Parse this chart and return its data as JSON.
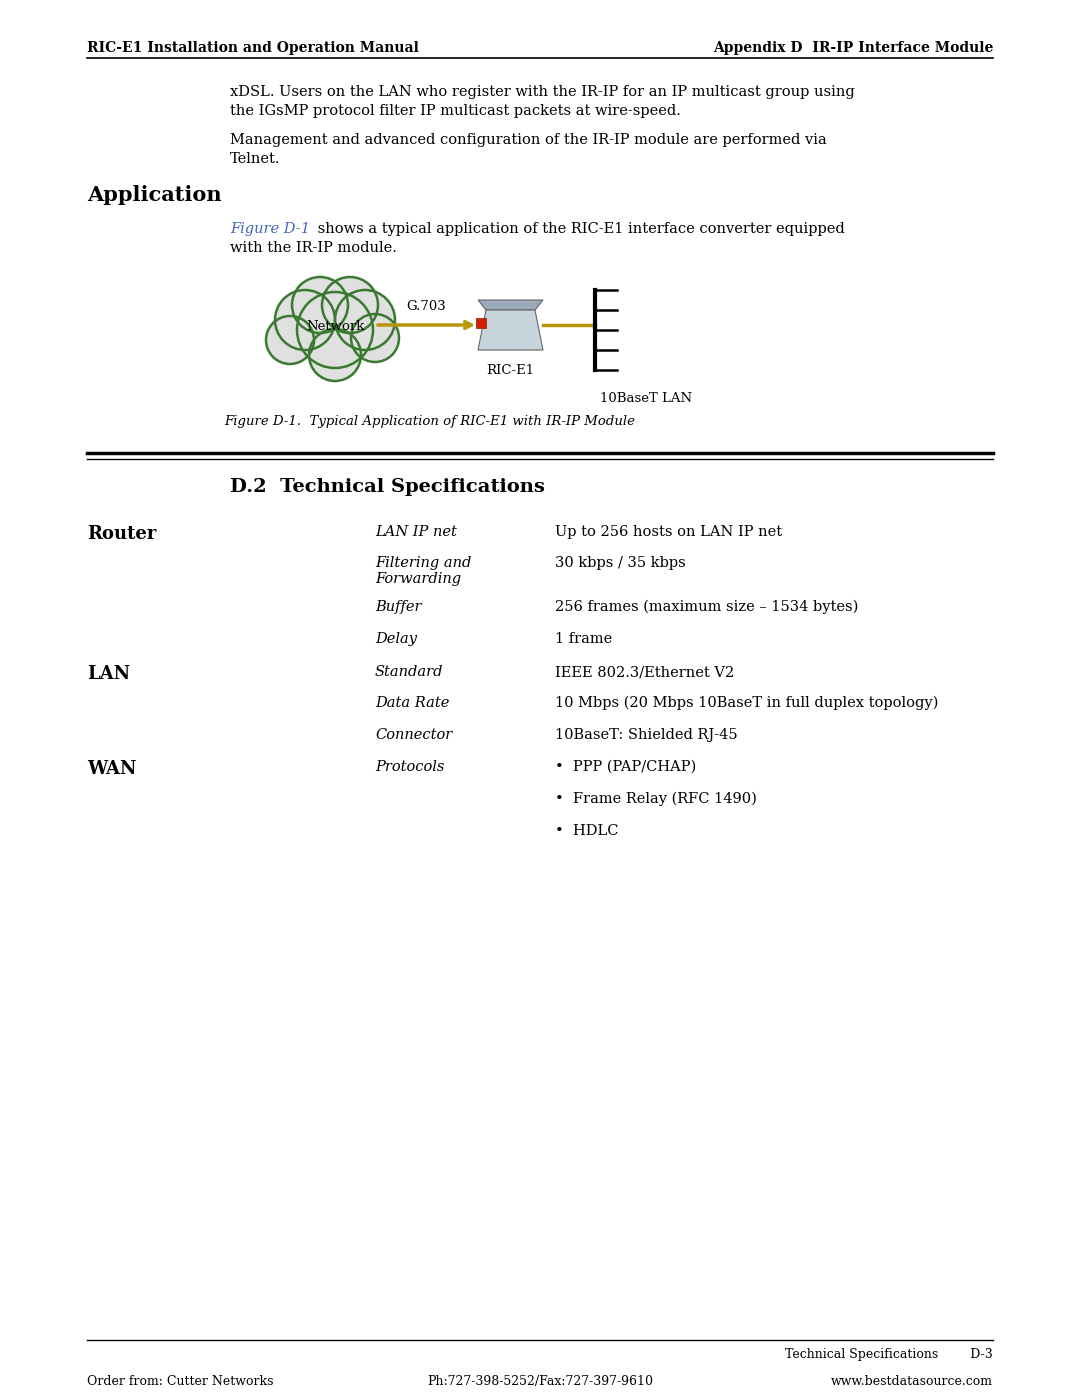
{
  "page_bg": "#ffffff",
  "header_left": "RIC-E1 Installation and Operation Manual",
  "header_right": "Appendix D  IR-IP Interface Module",
  "footer_center_label": "Technical Specifications",
  "footer_center_page": "D-3",
  "footer_left": "Order from: Cutter Networks",
  "footer_center_phone": "Ph:727-398-5252/Fax:727-397-9610",
  "footer_right": "www.bestdatasource.com",
  "body_text_1a": "xDSL. Users on the LAN who register with the IR-IP for an IP multicast group using",
  "body_text_1b": "the IGsMP protocol filter IP multicast packets at wire-speed.",
  "body_text_2a": "Management and advanced configuration of the IR-IP module are performed via",
  "body_text_2b": "Telnet.",
  "section_heading": "Application",
  "figure_ref_text": "Figure D-1",
  "figure_ref_color": "#4169b8",
  "figure_caption_rest": " shows a typical application of the RIC-E1 interface converter equipped",
  "figure_caption_rest2": "with the IR-IP module.",
  "figure_caption": "Figure D-1.  Typical Application of RIC-E1 with IR-IP Module",
  "section2_heading": "D.2  Technical Specifications",
  "specs": [
    {
      "category": "Router",
      "label": "LAN IP net",
      "value": "Up to 256 hosts on LAN IP net",
      "multiline_label": false,
      "bullet": false
    },
    {
      "category": "",
      "label": "Filtering and",
      "label2": "Forwarding",
      "value": "30 kbps / 35 kbps",
      "multiline_label": true,
      "bullet": false
    },
    {
      "category": "",
      "label": "Buffer",
      "label2": "",
      "value": "256 frames (maximum size – 1534 bytes)",
      "multiline_label": false,
      "bullet": false
    },
    {
      "category": "",
      "label": "Delay",
      "label2": "",
      "value": "1 frame",
      "multiline_label": false,
      "bullet": false
    },
    {
      "category": "LAN",
      "label": "Standard",
      "label2": "",
      "value": "IEEE 802.3/Ethernet V2",
      "multiline_label": false,
      "bullet": false
    },
    {
      "category": "",
      "label": "Data Rate",
      "label2": "",
      "value": "10 Mbps (20 Mbps 10BaseT in full duplex topology)",
      "multiline_label": false,
      "bullet": false
    },
    {
      "category": "",
      "label": "Connector",
      "label2": "",
      "value": "10BaseT: Shielded RJ-45",
      "multiline_label": false,
      "bullet": false
    },
    {
      "category": "WAN",
      "label": "Protocols",
      "label2": "",
      "value": "",
      "multiline_label": false,
      "bullet": true,
      "bullets": [
        "•  PPP (PAP/CHAP)",
        "•  Frame Relay (RFC 1490)",
        "•  HDLC"
      ]
    }
  ]
}
